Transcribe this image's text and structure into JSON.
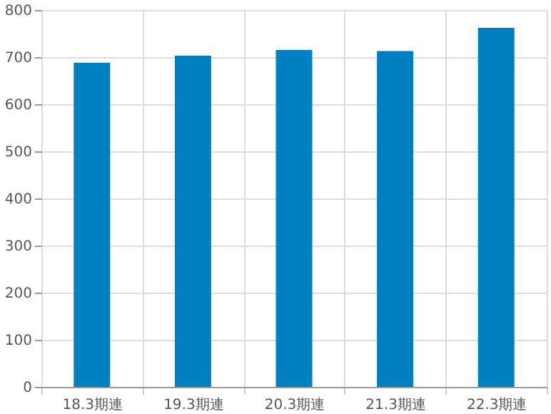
{
  "chart_data": {
    "type": "bar",
    "categories": [
      "18.3期連",
      "19.3期連",
      "20.3期連",
      "21.3期連",
      "22.3期連"
    ],
    "values": [
      688,
      703,
      715,
      713,
      762
    ],
    "color": "#007fc1",
    "ylim": [
      0,
      800
    ],
    "yticks": [
      0,
      100,
      200,
      300,
      400,
      500,
      600,
      700,
      800
    ],
    "grid": true
  }
}
